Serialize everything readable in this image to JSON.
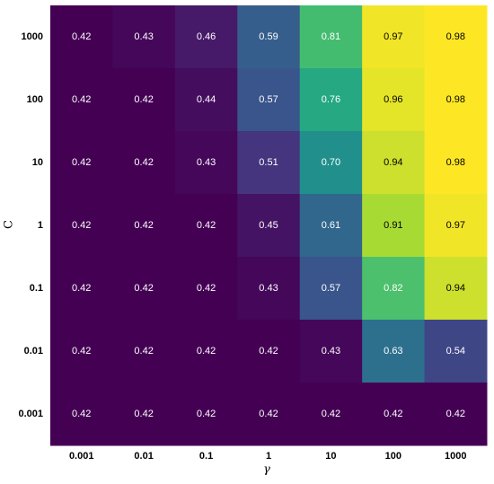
{
  "chart_data": {
    "type": "heatmap",
    "title": "",
    "xlabel": "γ",
    "ylabel": "C",
    "x_categories": [
      "0.001",
      "0.01",
      "0.1",
      "1",
      "10",
      "100",
      "1000"
    ],
    "y_categories": [
      "1000",
      "100",
      "10",
      "1",
      "0.1",
      "0.01",
      "0.001"
    ],
    "values": [
      [
        0.42,
        0.43,
        0.46,
        0.59,
        0.81,
        0.97,
        0.98
      ],
      [
        0.42,
        0.42,
        0.44,
        0.57,
        0.76,
        0.96,
        0.98
      ],
      [
        0.42,
        0.42,
        0.43,
        0.51,
        0.7,
        0.94,
        0.98
      ],
      [
        0.42,
        0.42,
        0.42,
        0.45,
        0.61,
        0.91,
        0.97
      ],
      [
        0.42,
        0.42,
        0.42,
        0.43,
        0.57,
        0.82,
        0.94
      ],
      [
        0.42,
        0.42,
        0.42,
        0.42,
        0.43,
        0.63,
        0.54
      ],
      [
        0.42,
        0.42,
        0.42,
        0.42,
        0.42,
        0.42,
        0.42
      ]
    ],
    "value_format": "2 decimals",
    "colormap": "viridis",
    "color_range": [
      0.42,
      0.98
    ],
    "legend": "none",
    "grid": false
  }
}
